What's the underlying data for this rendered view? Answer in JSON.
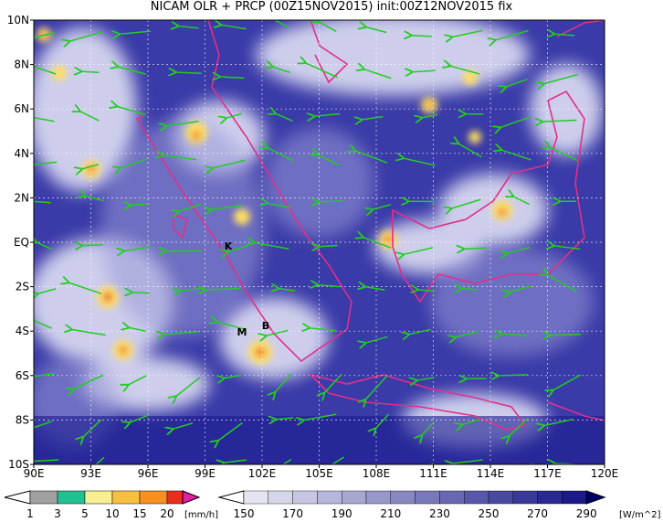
{
  "title": "NICAM OLR + PRCP (00Z15NOV2015) init:00Z12NOV2015 fix",
  "map": {
    "lat_labels": [
      "10N",
      "8N",
      "6N",
      "4N",
      "2N",
      "EQ",
      "2S",
      "4S",
      "6S",
      "8S",
      "10S"
    ],
    "lon_labels": [
      "90E",
      "93E",
      "96E",
      "99E",
      "102E",
      "105E",
      "108E",
      "111E",
      "114E",
      "117E",
      "120E"
    ],
    "markers": [
      "K",
      "M",
      "B"
    ]
  },
  "precip_legend": {
    "levels": [
      "1",
      "3",
      "5",
      "10",
      "15",
      "20"
    ],
    "unit": "[mm/h]"
  },
  "olr_legend": {
    "levels": [
      "150",
      "170",
      "190",
      "210",
      "230",
      "250",
      "270",
      "290"
    ],
    "unit": "[W/m^2]"
  }
}
